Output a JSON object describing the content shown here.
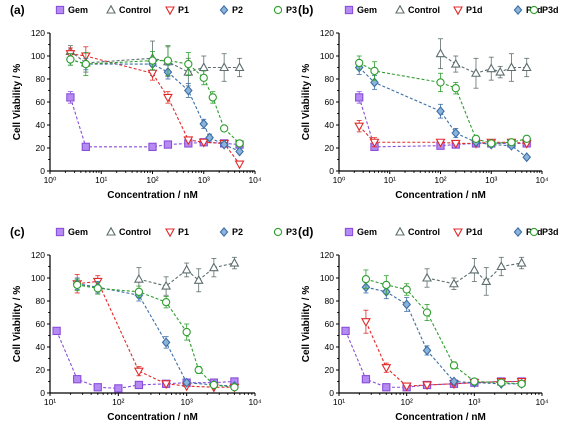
{
  "legend_items": [
    {
      "key": "gem",
      "marker": "square",
      "color": "#8A4FD9",
      "fill": "#B58AF2"
    },
    {
      "key": "control",
      "marker": "triangle-up",
      "color": "#5E6E6E",
      "fill": "none"
    },
    {
      "key": "p1",
      "marker": "triangle-down",
      "color": "#E02A2A",
      "fill": "none"
    },
    {
      "key": "p2",
      "marker": "diamond",
      "color": "#3B6FA8",
      "fill": "#8CB3D9"
    },
    {
      "key": "p3",
      "marker": "circle",
      "color": "#2E9E2E",
      "fill": "none"
    }
  ],
  "chart_data": [
    {
      "panel": "(a)",
      "type": "scatter",
      "xscale": "log",
      "xlim": [
        1,
        10000
      ],
      "ylim": [
        0,
        120
      ],
      "xlabel": "Concentration / nM",
      "ylabel": "Cell Viability / %",
      "xticks": [
        {
          "v": 1,
          "label": "10⁰"
        },
        {
          "v": 10,
          "label": "10¹"
        },
        {
          "v": 100,
          "label": "10²"
        },
        {
          "v": 1000,
          "label": "10³"
        },
        {
          "v": 10000,
          "label": "10⁴"
        }
      ],
      "yticks": [
        0,
        20,
        40,
        60,
        80,
        100,
        120
      ],
      "series": [
        {
          "name": "Gem",
          "style": 0,
          "points": [
            [
              2.5,
              64,
              5
            ],
            [
              5,
              21,
              0
            ],
            [
              100,
              21,
              0
            ],
            [
              200,
              23,
              0
            ],
            [
              500,
              24,
              0
            ],
            [
              1000,
              25,
              0
            ],
            [
              2500,
              24,
              0
            ],
            [
              5000,
              23,
              0
            ]
          ]
        },
        {
          "name": "Control",
          "style": 1,
          "points": [
            [
              2.5,
              104,
              5
            ],
            [
              5,
              94,
              8
            ],
            [
              100,
              98,
              15
            ],
            [
              200,
              95,
              13
            ],
            [
              500,
              86,
              12
            ],
            [
              1000,
              90,
              10
            ],
            [
              2500,
              90,
              12
            ],
            [
              5000,
              90,
              8
            ]
          ]
        },
        {
          "name": "P1",
          "style": 2,
          "points": [
            [
              2.5,
              102,
              5
            ],
            [
              5,
              100,
              8
            ],
            [
              100,
              85,
              6
            ],
            [
              200,
              64,
              5
            ],
            [
              500,
              27,
              0
            ],
            [
              1000,
              25,
              0
            ],
            [
              2500,
              24,
              0
            ],
            [
              5000,
              6,
              0
            ]
          ]
        },
        {
          "name": "P2",
          "style": 3,
          "points": [
            [
              2.5,
              97,
              5
            ],
            [
              5,
              93,
              5
            ],
            [
              100,
              93,
              5
            ],
            [
              200,
              86,
              6
            ],
            [
              500,
              70,
              6
            ],
            [
              1000,
              41,
              4
            ],
            [
              1300,
              29,
              3
            ],
            [
              2500,
              23,
              0
            ],
            [
              5000,
              17,
              0
            ]
          ]
        },
        {
          "name": "P3",
          "style": 4,
          "points": [
            [
              2.5,
              97,
              5
            ],
            [
              5,
              93,
              10
            ],
            [
              100,
              96,
              8
            ],
            [
              200,
              96,
              13
            ],
            [
              500,
              93,
              10
            ],
            [
              1000,
              81,
              6
            ],
            [
              1500,
              64,
              5
            ],
            [
              2500,
              37,
              0
            ],
            [
              5000,
              24,
              0
            ]
          ]
        }
      ]
    },
    {
      "panel": "(b)",
      "type": "scatter",
      "xscale": "log",
      "xlim": [
        1,
        10000
      ],
      "ylim": [
        0,
        120
      ],
      "xlabel": "Concentration / nM",
      "ylabel": "Cell Viability / %",
      "xticks": [
        {
          "v": 1,
          "label": "10⁰"
        },
        {
          "v": 10,
          "label": "10¹"
        },
        {
          "v": 100,
          "label": "10²"
        },
        {
          "v": 1000,
          "label": "10³"
        },
        {
          "v": 10000,
          "label": "10⁴"
        }
      ],
      "yticks": [
        0,
        20,
        40,
        60,
        80,
        100,
        120
      ],
      "series": [
        {
          "name": "Gem",
          "style": 0,
          "points": [
            [
              2.5,
              64,
              5
            ],
            [
              5,
              21,
              0
            ],
            [
              100,
              22,
              0
            ],
            [
              200,
              23,
              0
            ],
            [
              500,
              24,
              0
            ],
            [
              1000,
              24,
              0
            ],
            [
              2500,
              24,
              0
            ],
            [
              5000,
              24,
              0
            ]
          ]
        },
        {
          "name": "Control",
          "style": 1,
          "points": [
            [
              100,
              102,
              13
            ],
            [
              200,
              93,
              7
            ],
            [
              500,
              85,
              13
            ],
            [
              1000,
              89,
              10
            ],
            [
              1500,
              86,
              5
            ],
            [
              2500,
              90,
              12
            ],
            [
              5000,
              90,
              8
            ]
          ]
        },
        {
          "name": "P1d",
          "style": 2,
          "points": [
            [
              2.5,
              39,
              5
            ],
            [
              5,
              25,
              4
            ],
            [
              100,
              25,
              0
            ],
            [
              200,
              24,
              0
            ],
            [
              500,
              24,
              0
            ],
            [
              1000,
              25,
              0
            ],
            [
              2500,
              25,
              0
            ],
            [
              5000,
              24,
              0
            ]
          ]
        },
        {
          "name": "P2d",
          "style": 3,
          "points": [
            [
              2.5,
              90,
              6
            ],
            [
              5,
              77,
              6
            ],
            [
              100,
              52,
              6
            ],
            [
              200,
              33,
              4
            ],
            [
              500,
              25,
              0
            ],
            [
              1000,
              23,
              0
            ],
            [
              2500,
              22,
              0
            ],
            [
              5000,
              12,
              0
            ]
          ]
        },
        {
          "name": "P3d",
          "style": 4,
          "points": [
            [
              2.5,
              94,
              6
            ],
            [
              5,
              87,
              8
            ],
            [
              100,
              77,
              8
            ],
            [
              200,
              72,
              5
            ],
            [
              500,
              28,
              0
            ],
            [
              1000,
              24,
              0
            ],
            [
              2500,
              25,
              0
            ],
            [
              5000,
              28,
              0
            ]
          ]
        }
      ]
    },
    {
      "panel": "(c)",
      "type": "scatter",
      "xscale": "log",
      "xlim": [
        10,
        10000
      ],
      "ylim": [
        0,
        120
      ],
      "xlabel": "Concentration / nM",
      "ylabel": "Cell Viability / %",
      "xticks": [
        {
          "v": 10,
          "label": "10¹"
        },
        {
          "v": 100,
          "label": "10²"
        },
        {
          "v": 1000,
          "label": "10³"
        },
        {
          "v": 10000,
          "label": "10⁴"
        }
      ],
      "yticks": [
        0,
        20,
        40,
        60,
        80,
        100,
        120
      ],
      "series": [
        {
          "name": "Gem",
          "style": 0,
          "points": [
            [
              12.5,
              54,
              3
            ],
            [
              25,
              12,
              0
            ],
            [
              50,
              5,
              0
            ],
            [
              100,
              4,
              0
            ],
            [
              200,
              7,
              0
            ],
            [
              500,
              8,
              0
            ],
            [
              1000,
              9,
              0
            ],
            [
              2500,
              9,
              0
            ],
            [
              5000,
              10,
              0
            ]
          ]
        },
        {
          "name": "Control",
          "style": 1,
          "points": [
            [
              200,
              99,
              10
            ],
            [
              500,
              93,
              8
            ],
            [
              1000,
              107,
              6
            ],
            [
              1500,
              98,
              10
            ],
            [
              2500,
              109,
              8
            ],
            [
              5000,
              113,
              5
            ]
          ]
        },
        {
          "name": "P1",
          "style": 2,
          "points": [
            [
              25,
              95,
              8
            ],
            [
              50,
              97,
              5
            ],
            [
              200,
              19,
              4
            ],
            [
              500,
              8,
              0
            ],
            [
              1000,
              6,
              0
            ],
            [
              2500,
              5,
              0
            ],
            [
              5000,
              5,
              0
            ]
          ]
        },
        {
          "name": "P2",
          "style": 3,
          "points": [
            [
              25,
              95,
              5
            ],
            [
              50,
              92,
              5
            ],
            [
              200,
              85,
              5
            ],
            [
              500,
              44,
              5
            ],
            [
              1000,
              9,
              0
            ],
            [
              2500,
              7,
              0
            ],
            [
              5000,
              6,
              0
            ]
          ]
        },
        {
          "name": "P3",
          "style": 4,
          "points": [
            [
              25,
              94,
              5
            ],
            [
              50,
              91,
              5
            ],
            [
              200,
              88,
              5
            ],
            [
              500,
              79,
              5
            ],
            [
              1000,
              53,
              7
            ],
            [
              1500,
              20,
              3
            ],
            [
              2500,
              7,
              0
            ],
            [
              5000,
              5,
              0
            ]
          ]
        }
      ]
    },
    {
      "panel": "(d)",
      "type": "scatter",
      "xscale": "log",
      "xlim": [
        10,
        10000
      ],
      "ylim": [
        0,
        120
      ],
      "xlabel": "Concentration / nM",
      "ylabel": "Cell Viability / %",
      "xticks": [
        {
          "v": 10,
          "label": "10¹"
        },
        {
          "v": 100,
          "label": "10²"
        },
        {
          "v": 1000,
          "label": "10³"
        },
        {
          "v": 10000,
          "label": "10⁴"
        }
      ],
      "yticks": [
        0,
        20,
        40,
        60,
        80,
        100,
        120
      ],
      "series": [
        {
          "name": "Gem",
          "style": 0,
          "points": [
            [
              12.5,
              54,
              3
            ],
            [
              25,
              12,
              0
            ],
            [
              50,
              5,
              0
            ],
            [
              100,
              5,
              0
            ],
            [
              200,
              7,
              0
            ],
            [
              500,
              8,
              0
            ],
            [
              1000,
              9,
              0
            ],
            [
              2500,
              10,
              0
            ],
            [
              5000,
              10,
              0
            ]
          ]
        },
        {
          "name": "Control",
          "style": 1,
          "points": [
            [
              200,
              100,
              8
            ],
            [
              500,
              95,
              5
            ],
            [
              1000,
              107,
              10
            ],
            [
              1500,
              97,
              12
            ],
            [
              2500,
              110,
              8
            ],
            [
              5000,
              113,
              5
            ]
          ]
        },
        {
          "name": "P1d",
          "style": 2,
          "points": [
            [
              25,
              62,
              10
            ],
            [
              50,
              22,
              4
            ],
            [
              100,
              6,
              0
            ],
            [
              200,
              7,
              0
            ],
            [
              500,
              8,
              0
            ],
            [
              1000,
              9,
              0
            ],
            [
              2500,
              10,
              0
            ],
            [
              5000,
              10,
              0
            ]
          ]
        },
        {
          "name": "P2d",
          "style": 3,
          "points": [
            [
              25,
              92,
              5
            ],
            [
              50,
              88,
              6
            ],
            [
              100,
              77,
              6
            ],
            [
              200,
              37,
              4
            ],
            [
              500,
              10,
              0
            ],
            [
              1000,
              9,
              0
            ],
            [
              2500,
              8,
              0
            ],
            [
              5000,
              8,
              0
            ]
          ]
        },
        {
          "name": "P3d",
          "style": 4,
          "points": [
            [
              25,
              99,
              8
            ],
            [
              50,
              94,
              8
            ],
            [
              100,
              90,
              5
            ],
            [
              200,
              70,
              7
            ],
            [
              500,
              24,
              3
            ],
            [
              1000,
              10,
              0
            ],
            [
              2500,
              9,
              0
            ],
            [
              5000,
              8,
              0
            ]
          ]
        }
      ]
    }
  ]
}
